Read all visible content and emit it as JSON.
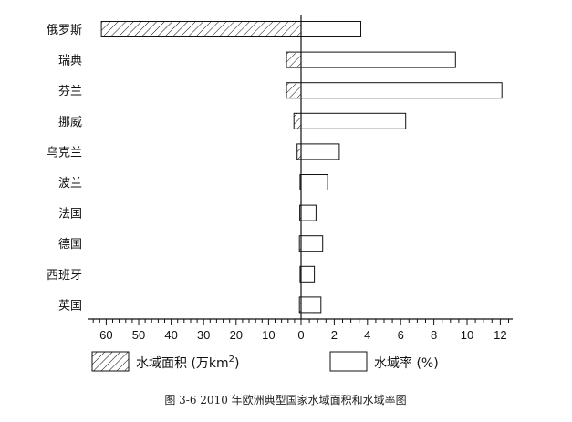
{
  "chart_data": {
    "type": "bar",
    "orientation": "horizontal",
    "layout": "back-to-back",
    "categories": [
      "俄罗斯",
      "瑞典",
      "芬兰",
      "挪威",
      "乌克兰",
      "波兰",
      "法国",
      "德国",
      "西班牙",
      "英国"
    ],
    "series": [
      {
        "name": "水域面积 (万km²)",
        "side": "left",
        "pattern": "hatched",
        "values": [
          61.5,
          4.5,
          4.5,
          2.2,
          1.2,
          0.3,
          0.4,
          0.5,
          0.3,
          0.5
        ],
        "axis_ticks": [
          60,
          50,
          40,
          30,
          20,
          10,
          0
        ],
        "xlim": [
          0,
          66
        ]
      },
      {
        "name": "水域率 (%)",
        "side": "right",
        "pattern": "empty",
        "values": [
          3.6,
          9.3,
          12.1,
          6.3,
          2.3,
          1.6,
          0.9,
          1.3,
          0.8,
          1.2
        ],
        "axis_ticks": [
          0,
          2,
          4,
          6,
          8,
          10,
          12
        ],
        "xlim": [
          0,
          12.5
        ]
      }
    ],
    "legend": {
      "position": "bottom",
      "items": [
        {
          "prefix": "水域面积 (万km",
          "sup": "2",
          "suffix": ")",
          "pattern": "hatched"
        },
        {
          "prefix": "水域率 (%)",
          "sup": "",
          "suffix": "",
          "pattern": "empty"
        }
      ]
    },
    "grid": false
  },
  "caption": "图 3-6  2010 年欧洲典型国家水域面积和水域率图",
  "colors": {
    "stroke": "#111111",
    "fill": "#ffffff"
  }
}
